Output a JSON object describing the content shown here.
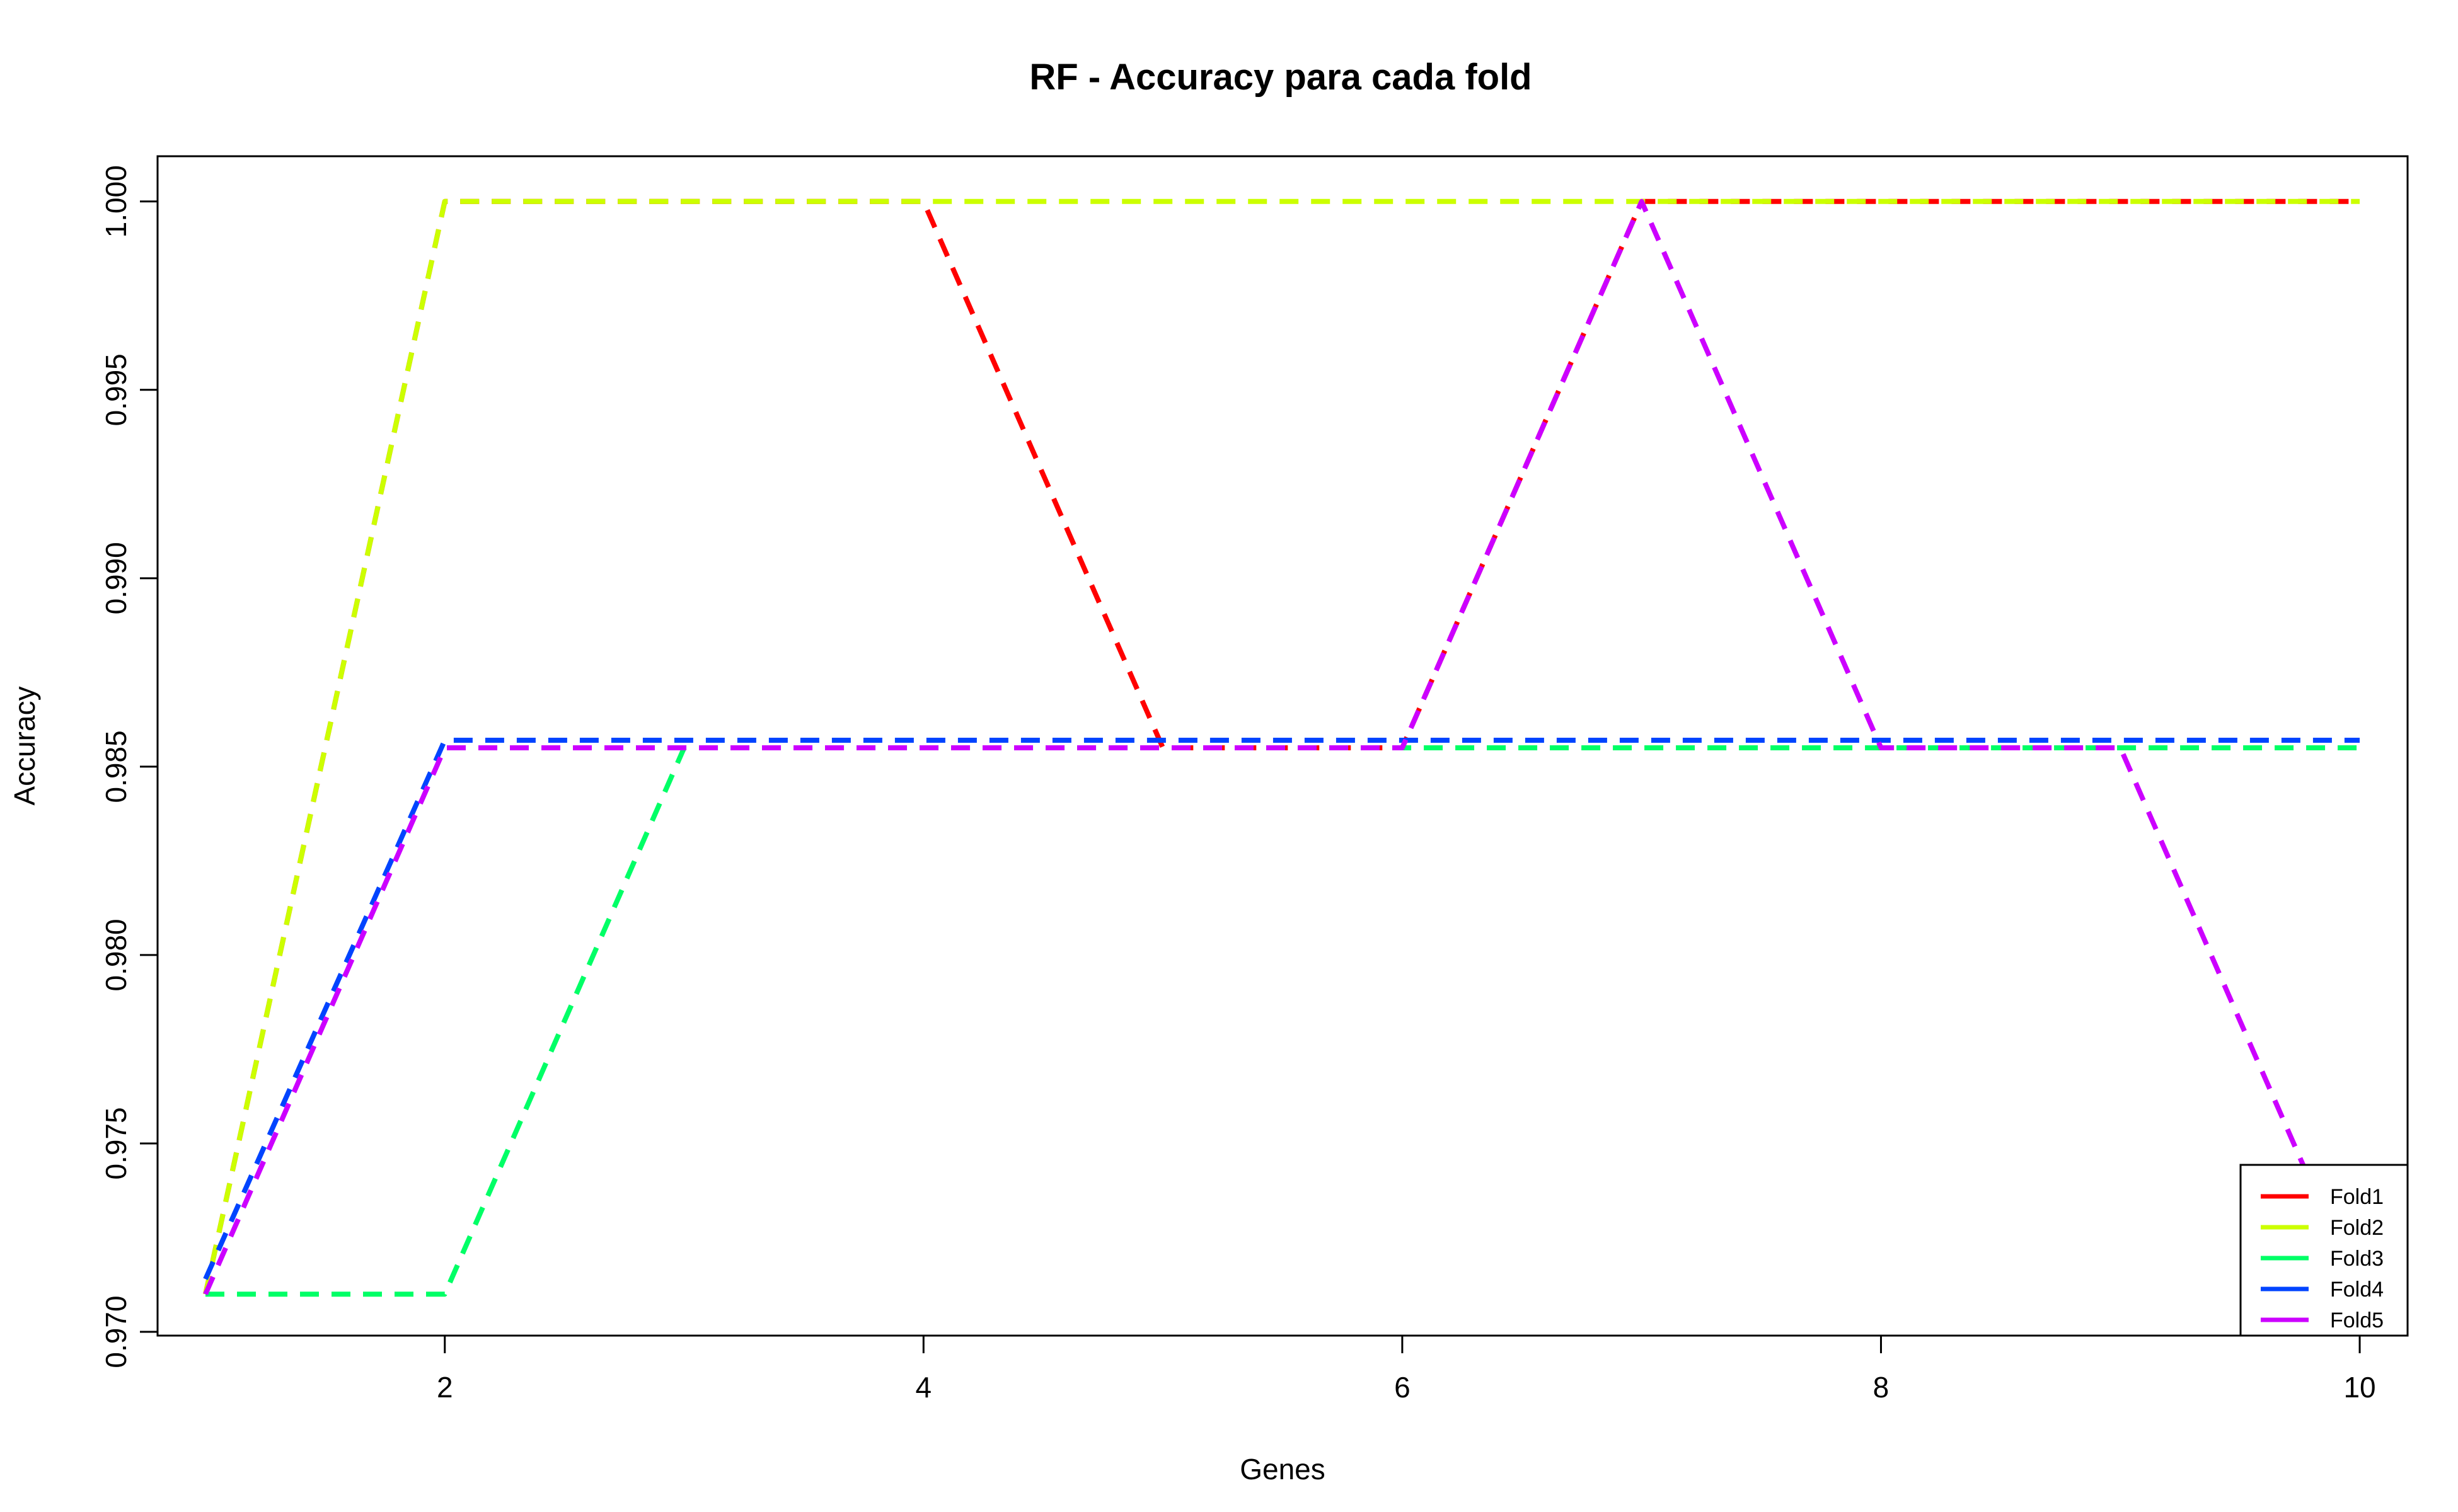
{
  "chart_data": {
    "type": "line",
    "title": "RF - Accuracy para cada fold",
    "xlabel": "Genes",
    "ylabel": "Accuracy",
    "xlim": [
      0.8,
      10.2
    ],
    "ylim": [
      0.9699,
      1.0012
    ],
    "xticks": [
      "2",
      "4",
      "6",
      "8",
      "10"
    ],
    "yticks": [
      "0.970",
      "0.975",
      "0.980",
      "0.985",
      "0.990",
      "0.995",
      "1.000"
    ],
    "grid": false,
    "legend_position": "bottom-right",
    "line_style": "dashed",
    "x": [
      1,
      2,
      3,
      4,
      5,
      6,
      7,
      8,
      9,
      10
    ],
    "series": [
      {
        "name": "Fold1",
        "color": "#ff0000",
        "values": [
          0.971,
          1.0,
          1.0,
          1.0,
          0.9855,
          0.9855,
          1.0,
          1.0,
          1.0,
          1.0
        ]
      },
      {
        "name": "Fold2",
        "color": "#ccff00",
        "values": [
          0.971,
          1.0,
          1.0,
          1.0,
          1.0,
          1.0,
          1.0,
          1.0,
          1.0,
          1.0
        ]
      },
      {
        "name": "Fold3",
        "color": "#00ff66",
        "values": [
          0.971,
          0.971,
          0.9855,
          0.9855,
          0.9855,
          0.9855,
          0.9855,
          0.9855,
          0.9855,
          0.9855
        ]
      },
      {
        "name": "Fold4",
        "color": "#0044ff",
        "values": [
          0.9714,
          0.9857,
          0.9857,
          0.9857,
          0.9857,
          0.9857,
          0.9857,
          0.9857,
          0.9857,
          0.9857
        ]
      },
      {
        "name": "Fold5",
        "color": "#cc00ff",
        "values": [
          0.971,
          0.9855,
          0.9855,
          0.9855,
          0.9855,
          0.9855,
          1.0,
          0.9855,
          0.9855,
          0.971
        ]
      }
    ]
  }
}
